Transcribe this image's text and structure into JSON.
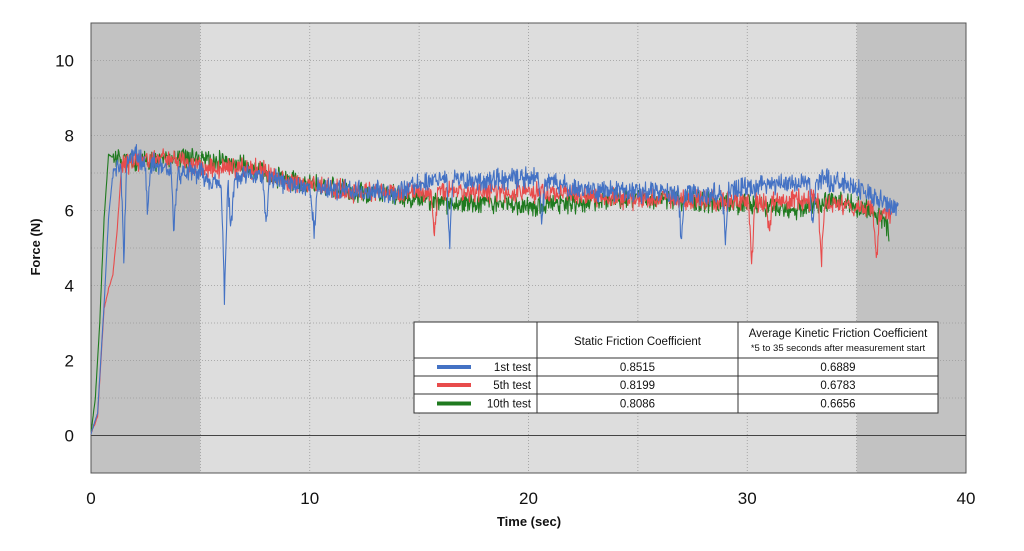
{
  "chart_data": {
    "type": "line",
    "title": "",
    "xlabel": "Time (sec)",
    "ylabel": "Force (N)",
    "xlim": [
      0,
      40
    ],
    "ylim": [
      -1,
      11
    ],
    "x_ticks": [
      "0",
      "10",
      "20",
      "30",
      "40"
    ],
    "y_ticks": [
      "0",
      "2",
      "4",
      "6",
      "8",
      "10"
    ],
    "grid": true,
    "shaded_regions": [
      {
        "from": 0,
        "to": 5,
        "shade": "dark"
      },
      {
        "from": 5,
        "to": 35,
        "shade": "light"
      },
      {
        "from": 35,
        "to": 40,
        "shade": "dark"
      }
    ],
    "series": [
      {
        "name": "1st test",
        "color": "#4472c4",
        "end_time": 36.9,
        "points": [
          [
            0,
            0.05
          ],
          [
            0.3,
            0.6
          ],
          [
            0.6,
            3.5
          ],
          [
            0.8,
            5.8
          ],
          [
            1.0,
            7.0
          ],
          [
            1.5,
            7.3
          ],
          [
            2.0,
            7.5
          ],
          [
            2.5,
            7.3
          ],
          [
            3,
            7.2
          ],
          [
            3.5,
            7.0
          ],
          [
            4,
            7.0
          ],
          [
            5,
            7.0
          ],
          [
            6,
            6.6
          ],
          [
            7,
            6.9
          ],
          [
            8,
            6.9
          ],
          [
            9,
            6.7
          ],
          [
            10,
            6.6
          ],
          [
            11,
            6.6
          ],
          [
            12,
            6.5
          ],
          [
            14,
            6.5
          ],
          [
            15,
            6.7
          ],
          [
            16,
            6.9
          ],
          [
            17,
            6.8
          ],
          [
            18,
            6.8
          ],
          [
            19,
            6.8
          ],
          [
            20,
            6.9
          ],
          [
            22,
            6.6
          ],
          [
            24,
            6.5
          ],
          [
            26,
            6.5
          ],
          [
            28,
            6.4
          ],
          [
            30,
            6.6
          ],
          [
            31,
            6.7
          ],
          [
            32,
            6.7
          ],
          [
            33,
            6.8
          ],
          [
            34,
            6.8
          ],
          [
            35,
            6.6
          ],
          [
            36,
            6.3
          ],
          [
            36.9,
            6.0
          ]
        ],
        "spikes": [
          [
            1.5,
            4.9
          ],
          [
            2.6,
            6.0
          ],
          [
            3.8,
            5.5
          ],
          [
            6.1,
            3.8
          ],
          [
            6.4,
            5.5
          ],
          [
            8.0,
            5.5
          ],
          [
            10.2,
            5.3
          ],
          [
            16.4,
            5.1
          ],
          [
            20.6,
            5.7
          ],
          [
            27.0,
            5.1
          ],
          [
            29.0,
            5.3
          ],
          [
            33.0,
            5.5
          ]
        ]
      },
      {
        "name": "5th test",
        "color": "#e84c4c",
        "end_time": 36.6,
        "points": [
          [
            0,
            0.05
          ],
          [
            0.3,
            0.5
          ],
          [
            0.6,
            3.4
          ],
          [
            0.8,
            3.9
          ],
          [
            1.0,
            4.3
          ],
          [
            1.2,
            5.5
          ],
          [
            1.4,
            7.2
          ],
          [
            2,
            7.3
          ],
          [
            3,
            7.4
          ],
          [
            4,
            7.3
          ],
          [
            5,
            7.2
          ],
          [
            6,
            7.1
          ],
          [
            7,
            7.2
          ],
          [
            8,
            7.0
          ],
          [
            9,
            6.8
          ],
          [
            10,
            6.7
          ],
          [
            11,
            6.6
          ],
          [
            12,
            6.5
          ],
          [
            14,
            6.5
          ],
          [
            16,
            6.5
          ],
          [
            18,
            6.5
          ],
          [
            20,
            6.5
          ],
          [
            22,
            6.4
          ],
          [
            24,
            6.3
          ],
          [
            26,
            6.3
          ],
          [
            28,
            6.3
          ],
          [
            30,
            6.2
          ],
          [
            32,
            6.3
          ],
          [
            34,
            6.2
          ],
          [
            35,
            6.1
          ],
          [
            36,
            6.0
          ],
          [
            36.6,
            5.8
          ]
        ],
        "spikes": [
          [
            15.7,
            5.4
          ],
          [
            30.2,
            4.7
          ],
          [
            31.0,
            5.3
          ],
          [
            33.4,
            4.7
          ],
          [
            35.9,
            4.6
          ]
        ]
      },
      {
        "name": "10th test",
        "color": "#1f7a1f",
        "end_time": 36.5,
        "points": [
          [
            0,
            0.05
          ],
          [
            0.2,
            1.0
          ],
          [
            0.4,
            3.0
          ],
          [
            0.6,
            5.8
          ],
          [
            0.8,
            7.5
          ],
          [
            1,
            7.4
          ],
          [
            2,
            7.3
          ],
          [
            3,
            7.3
          ],
          [
            4,
            7.4
          ],
          [
            5,
            7.4
          ],
          [
            6,
            7.3
          ],
          [
            7,
            7.2
          ],
          [
            8,
            7.0
          ],
          [
            9,
            6.8
          ],
          [
            10,
            6.7
          ],
          [
            12,
            6.5
          ],
          [
            14,
            6.4
          ],
          [
            16,
            6.2
          ],
          [
            18,
            6.2
          ],
          [
            20,
            6.1
          ],
          [
            22,
            6.2
          ],
          [
            24,
            6.3
          ],
          [
            26,
            6.3
          ],
          [
            28,
            6.2
          ],
          [
            30,
            6.2
          ],
          [
            32,
            6.0
          ],
          [
            34,
            6.3
          ],
          [
            36,
            5.9
          ],
          [
            36.5,
            5.4
          ]
        ],
        "spikes": []
      }
    ]
  },
  "table": {
    "headers": {
      "static": "Static Friction Coefficient",
      "kinetic": "Average Kinetic Friction Coefficient",
      "kinetic_note": "*5 to 35 seconds after measurement start"
    },
    "rows": [
      {
        "label": "1st test",
        "color": "#4472c4",
        "static": "0.8515",
        "kinetic": "0.6889"
      },
      {
        "label": "5th test",
        "color": "#e84c4c",
        "static": "0.8199",
        "kinetic": "0.6783"
      },
      {
        "label": "10th test",
        "color": "#1f7a1f",
        "static": "0.8086",
        "kinetic": "0.6656"
      }
    ]
  }
}
